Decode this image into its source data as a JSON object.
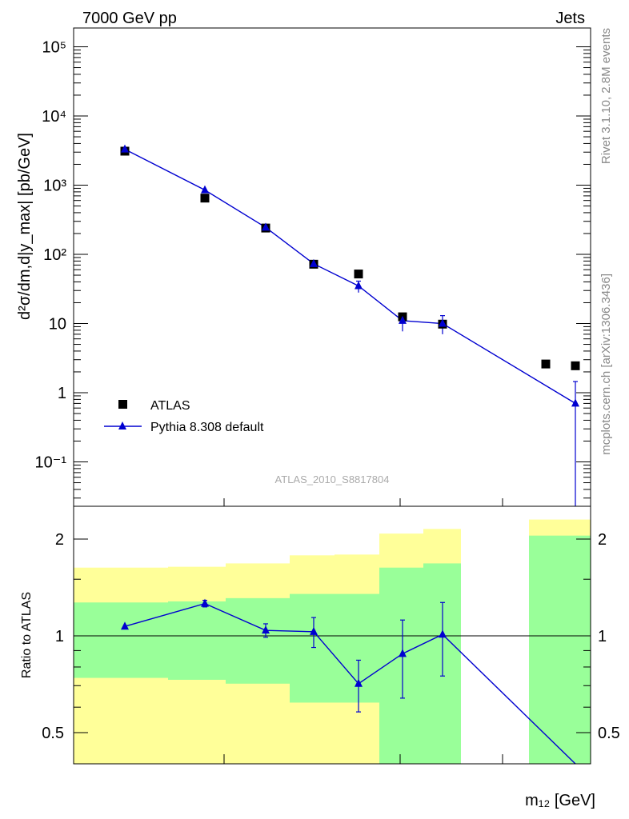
{
  "header": {
    "left": "7000 GeV pp",
    "right": "Jets"
  },
  "watermark": "ATLAS_2010_S8817804",
  "side_text": {
    "top": "Rivet 3.1.10,  2.8M events",
    "bottom": "mcplots.cern.ch [arXiv:1306.3436]"
  },
  "colors": {
    "mc": "#0000d0",
    "data": "#000000",
    "band_outer": "#ffff99",
    "band_inner": "#99ff99"
  },
  "chart_data": [
    {
      "type": "line",
      "panel": "main",
      "ylabel": "d²σ/dm,d|y_max| [pb/GeV]",
      "yscale": "log",
      "ytick_labels": [
        "10⁻¹",
        "1",
        "10",
        "10²",
        "10³",
        "10⁴",
        "10⁵"
      ],
      "ytick_values": [
        0.1,
        1,
        10,
        100,
        1000,
        10000,
        100000
      ],
      "legend": {
        "placement": "lower-left",
        "entries": [
          "ATLAS",
          "Pythia 8.308 default"
        ]
      },
      "series": [
        {
          "name": "ATLAS",
          "marker": "square",
          "x": [
            1,
            2,
            3,
            4,
            5,
            6,
            7,
            8,
            9
          ],
          "y": [
            3100,
            650,
            240,
            72,
            52,
            12.5,
            9.8,
            2.6,
            2.45
          ]
        },
        {
          "name": "Pythia 8.308 default",
          "marker": "triangle",
          "x": [
            1,
            2,
            3,
            4,
            5,
            6,
            7,
            8,
            9
          ],
          "y": [
            3300,
            850,
            245,
            73,
            35,
            11,
            10,
            1.6,
            0.7
          ],
          "yerr_low": [
            0,
            0,
            0,
            0,
            7,
            3.3,
            3,
            0,
            0.68
          ],
          "yerr_high": [
            0,
            0,
            0,
            0,
            6,
            3,
            3,
            0,
            0.75
          ]
        }
      ]
    },
    {
      "type": "line",
      "panel": "ratio",
      "ylabel": "Ratio to ATLAS",
      "xlabel": "m₁₂ [GeV]",
      "ytick_labels": [
        "0.5",
        "1",
        "2"
      ],
      "ytick_values": [
        0.5,
        1,
        2
      ],
      "reference_line": 1,
      "series": [
        {
          "name": "Pythia 8.308 default",
          "marker": "triangle",
          "x": [
            1,
            2,
            3,
            4,
            5,
            6,
            7,
            9
          ],
          "y": [
            1.07,
            1.26,
            1.04,
            1.03,
            0.71,
            0.88,
            1.01,
            0.3
          ],
          "yerr_low": [
            0,
            0.03,
            0.05,
            0.11,
            0.13,
            0.24,
            0.26,
            0
          ],
          "yerr_high": [
            0,
            0.03,
            0.05,
            0.11,
            0.13,
            0.24,
            0.26,
            0
          ]
        }
      ],
      "bands": [
        {
          "outer": [
            0.35,
            1.63
          ],
          "inner": [
            0.74,
            1.27
          ]
        },
        {
          "outer": [
            0.33,
            1.64
          ],
          "inner": [
            0.73,
            1.28
          ]
        },
        {
          "outer": [
            0.33,
            1.68
          ],
          "inner": [
            0.71,
            1.31
          ]
        },
        {
          "outer": [
            0.33,
            1.78
          ],
          "inner": [
            0.62,
            1.35
          ]
        },
        {
          "outer": [
            0.33,
            1.79
          ],
          "inner": [
            0.62,
            1.35
          ]
        },
        {
          "outer": [
            0.36,
            2.08
          ],
          "inner": [
            0.36,
            1.63
          ]
        },
        {
          "outer": [
            0.33,
            2.15
          ],
          "inner": [
            0.33,
            1.68
          ]
        },
        {
          "outer": [
            0.33,
            2.3
          ],
          "inner": [
            0.33,
            2.05
          ]
        }
      ]
    }
  ]
}
